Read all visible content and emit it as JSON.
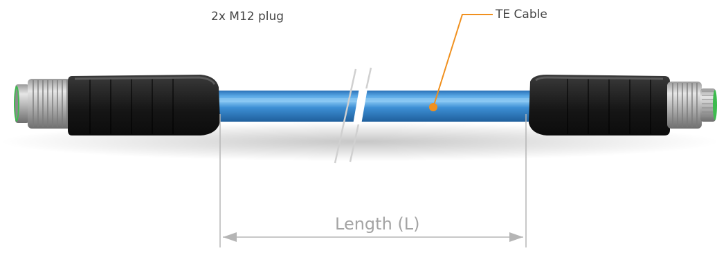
{
  "diagram": {
    "connector_label": "2x M12 plug",
    "cable_label": "TE Cable",
    "dimension_label": "Length (L)",
    "colors": {
      "cable": "#3d8fd4",
      "cable_highlight": "#7fc0f0",
      "cable_shadow": "#1f5f9c",
      "overmold": "#1e1e1e",
      "metal": "#c9c9c9",
      "callout": "#f0901e",
      "dimension": "#b5b5b5",
      "seal": "#3dbb4e"
    },
    "icons": {
      "left_connector": "m12-male-plug-icon",
      "right_connector": "m12-male-plug-icon"
    }
  }
}
